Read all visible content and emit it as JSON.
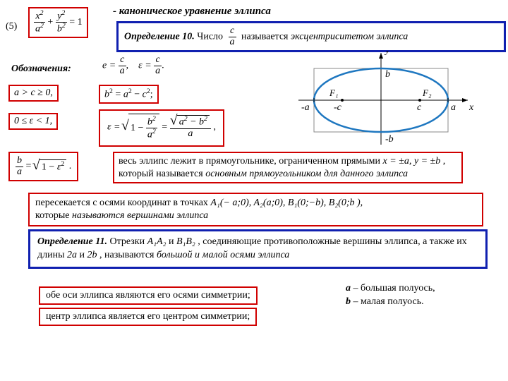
{
  "eq_number": "(5)",
  "canonical_caption": "- каноническое уравнение эллипса",
  "notation_label": "Обозначения:",
  "def10": {
    "lead": "Определение 10.",
    "pre": "Число",
    "post": "называется",
    "term": "эксцентриситетом эллипса"
  },
  "ineq1": "a > c ≥ 0,",
  "ineq2": "0 ≤ ε < 1,",
  "rectangle_note": {
    "pre": "весь эллипс лежит в прямоугольнике, ограниченном прямыми ",
    "eq": "x = ±a, y = ±b ,",
    "mid": "который называется",
    "term": " основным прямоугольником для данного эллипса"
  },
  "vertices_note": {
    "pre": "пересекается с осями координат в точках ",
    "pts": "A₁(− a;0),  A₂(a;0),  B₁(0;−b),  B₂(0;b ),",
    "post": "которые",
    "term": " называются вершинами эллипса"
  },
  "def11": {
    "lead": "Определение 11.",
    "pre": "Отрезки ",
    "seg1": "A₁A₂",
    "and": " и ",
    "seg2": "B₁B₂",
    "mid1": " , соединяющие противоположные вершины эллипса, а также их длины ",
    "len1": "2a",
    "and2": " и ",
    "len2": "2b",
    "mid2": " , называются",
    "term": " большой и малой осями эллипса"
  },
  "sym1": "обе оси эллипса являются его осями симметрии;",
  "sym2": "центр эллипса является его центром симметрии;",
  "axes_note": {
    "a_var": "a",
    "a_txt": " – большая полуось,",
    "b_var": "b",
    "b_txt": " – малая полуось."
  },
  "diagram": {
    "ellipse_color": "#1e77c0",
    "rect_color": "#888",
    "axis_color": "#000",
    "labels": {
      "x": "x",
      "y": "y",
      "a": "a",
      "ma": "-a",
      "b": "b",
      "mb": "-b",
      "c": "c",
      "mc": "-c",
      "F1": "F₁",
      "F2": "F₂"
    }
  },
  "colors": {
    "red": "#d00000",
    "blue": "#1020b0"
  }
}
